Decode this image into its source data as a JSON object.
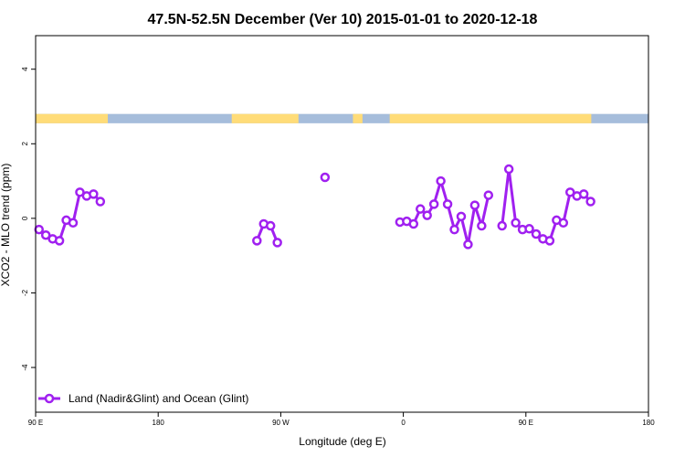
{
  "chart_data": {
    "type": "line",
    "title": "47.5N-52.5N December (Ver 10)   2015-01-01 to 2020-12-18",
    "xlabel": "Longitude (deg E)",
    "ylabel": "XCO2 - MLO trend (ppm)",
    "xlim": [
      90,
      450
    ],
    "ylim": [
      -5.2,
      4.9
    ],
    "x_ticks": [
      {
        "value": 90,
        "label": "90 E"
      },
      {
        "value": 180,
        "label": "180"
      },
      {
        "value": 270,
        "label": "90 W"
      },
      {
        "value": 360,
        "label": "0"
      },
      {
        "value": 450,
        "label": "90 E"
      },
      {
        "value": 540,
        "label": "180"
      }
    ],
    "y_ticks": [
      {
        "value": -4,
        "label": "-4"
      },
      {
        "value": -2,
        "label": "-2"
      },
      {
        "value": 0,
        "label": "0"
      },
      {
        "value": 2,
        "label": "2"
      },
      {
        "value": 4,
        "label": "4"
      }
    ],
    "x_display_max": 540,
    "series": [
      {
        "name": "Land (Nadir&Glint) and Ocean (Glint)",
        "color": "#a020f0",
        "segments": [
          [
            [
              92.5,
              -0.3
            ],
            [
              97.5,
              -0.45
            ],
            [
              102.5,
              -0.55
            ],
            [
              107.5,
              -0.6
            ],
            [
              112.5,
              -0.05
            ],
            [
              117.5,
              -0.12
            ],
            [
              122.5,
              0.7
            ],
            [
              127.5,
              0.6
            ],
            [
              132.5,
              0.65
            ],
            [
              137.5,
              0.45
            ]
          ],
          [
            [
              252.5,
              -0.6
            ],
            [
              257.5,
              -0.15
            ],
            [
              262.5,
              -0.2
            ],
            [
              267.5,
              -0.65
            ]
          ],
          [
            [
              302.5,
              1.1
            ]
          ],
          [
            [
              357.5,
              -0.1
            ],
            [
              362.5,
              -0.08
            ],
            [
              367.5,
              -0.15
            ],
            [
              372.5,
              0.25
            ],
            [
              377.5,
              0.08
            ],
            [
              382.5,
              0.38
            ],
            [
              387.5,
              1.0
            ],
            [
              392.5,
              0.38
            ],
            [
              397.5,
              -0.3
            ],
            [
              402.5,
              0.05
            ],
            [
              407.5,
              -0.7
            ],
            [
              412.5,
              0.35
            ],
            [
              417.5,
              -0.2
            ],
            [
              422.5,
              0.62
            ]
          ],
          [
            [
              432.5,
              -0.2
            ],
            [
              437.5,
              1.32
            ],
            [
              442.5,
              -0.12
            ],
            [
              447.5,
              -0.3
            ],
            [
              452.5,
              -0.28
            ],
            [
              457.5,
              -0.42
            ],
            [
              462.5,
              -0.55
            ],
            [
              467.5,
              -0.6
            ],
            [
              472.5,
              -0.05
            ],
            [
              477.5,
              -0.12
            ],
            [
              482.5,
              0.7
            ],
            [
              487.5,
              0.6
            ],
            [
              492.5,
              0.65
            ],
            [
              497.5,
              0.45
            ]
          ]
        ]
      }
    ],
    "surface_band": {
      "y_range": [
        2.55,
        2.8
      ],
      "land_color": "#ffdc78",
      "ocean_color": "#a6bddb",
      "land_ranges": [
        [
          90,
          143
        ],
        [
          234,
          283
        ],
        [
          323,
          330
        ],
        [
          350,
          498
        ],
        [
          543,
          548
        ]
      ]
    },
    "legend": {
      "position": "bottom-left"
    },
    "grid": false
  }
}
